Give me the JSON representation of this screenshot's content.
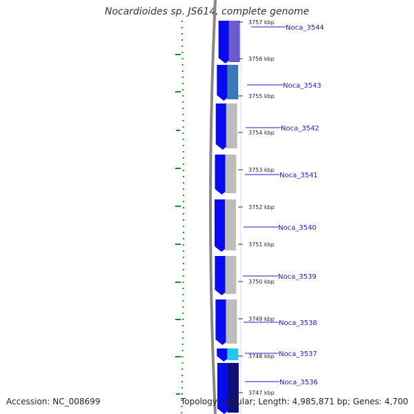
{
  "header": {
    "title": "Nocardioides sp. JS614, complete genome"
  },
  "footer": {
    "accession": "Accession: NC_008699",
    "summary": "Topology: circular; Length: 4,985,871 bp; Genes: 4,700"
  },
  "colors": {
    "forward_gene": "#0a0af0",
    "backbone": "#888888",
    "gc_skew": "#1a8a1a",
    "label_line": "#1a1ac8"
  },
  "ticks": [
    {
      "label": "3757 kbp"
    },
    {
      "label": "3756 kbp"
    },
    {
      "label": "3755 kbp"
    },
    {
      "label": "3754 kbp"
    },
    {
      "label": "3753 kbp"
    },
    {
      "label": "3752 kbp"
    },
    {
      "label": "3751 kbp"
    },
    {
      "label": "3750 kbp"
    },
    {
      "label": "3749 kbp"
    },
    {
      "label": "3748 kbp"
    },
    {
      "label": "3747 kbp"
    }
  ],
  "genes": [
    {
      "label": "Noca_3544",
      "cog_color": "#6a5ccf"
    },
    {
      "label": "Noca_3543",
      "cog_color": "#3a78b8"
    },
    {
      "label": "Noca_3542",
      "cog_color": "#bdbdbd"
    },
    {
      "label": "Noca_3541",
      "cog_color": "#bdbdbd"
    },
    {
      "label": "Noca_3540",
      "cog_color": "#bdbdbd"
    },
    {
      "label": "Noca_3539",
      "cog_color": "#bdbdbd"
    },
    {
      "label": "Noca_3538",
      "cog_color": "#bdbdbd"
    },
    {
      "label": "Noca_3537",
      "cog_color": "#22c8f0"
    },
    {
      "label": "Noca_3536",
      "cog_color": "#101078"
    }
  ]
}
